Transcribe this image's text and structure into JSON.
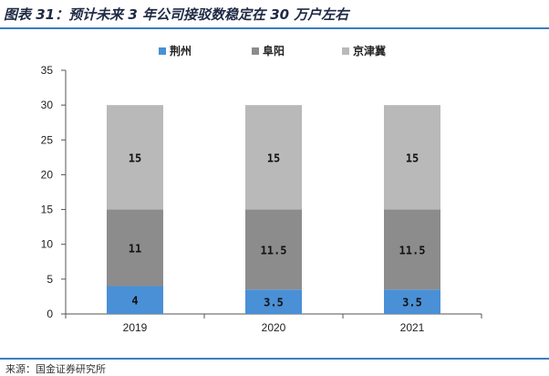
{
  "title": "图表 31：预计未来 3 年公司接驳数稳定在 30 万户左右",
  "source": "来源：国金证券研究所",
  "colors": {
    "rule": "#3a7dc4"
  },
  "chart_data": {
    "type": "bar",
    "stacked": true,
    "categories": [
      "2019",
      "2020",
      "2021"
    ],
    "series": [
      {
        "name": "荆州",
        "values": [
          4,
          3.5,
          3.5
        ],
        "labels": [
          "4",
          "3.5",
          "3.5"
        ],
        "color": "#4a90d6"
      },
      {
        "name": "阜阳",
        "values": [
          11,
          11.5,
          11.5
        ],
        "labels": [
          "11",
          "11.5",
          "11.5"
        ],
        "color": "#8c8c8c"
      },
      {
        "name": "京津冀",
        "values": [
          15,
          15,
          15
        ],
        "labels": [
          "15",
          "15",
          "15"
        ],
        "color": "#b9b9b9"
      }
    ],
    "ylim": [
      0,
      35
    ],
    "yticks": [
      0,
      5,
      10,
      15,
      20,
      25,
      30,
      35
    ],
    "legend": "top",
    "grid": false
  }
}
